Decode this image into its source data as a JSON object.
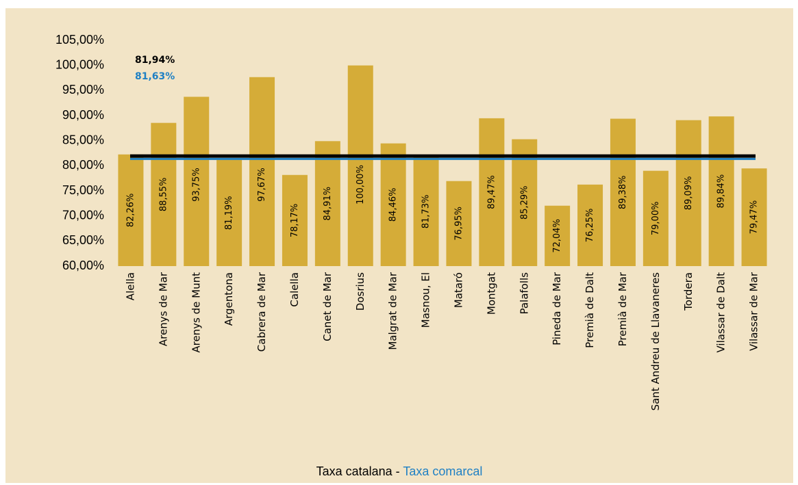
{
  "chart_data": {
    "type": "bar",
    "categories": [
      "Alella",
      "Arenys de Mar",
      "Arenys de Munt",
      "Argentona",
      "Cabrera de Mar",
      "Calella",
      "Canet de Mar",
      "Dosrius",
      "Malgrat de Mar",
      "Masnou, El",
      "Mataró",
      "Montgat",
      "Palafolls",
      "Pineda de Mar",
      "Premià de Dalt",
      "Premià de Mar",
      "Sant Andreu de Llavaneres",
      "Tordera",
      "Vilassar de Dalt",
      "Vilassar de Mar"
    ],
    "values": [
      82.26,
      88.55,
      93.75,
      81.19,
      97.67,
      78.17,
      84.91,
      100.0,
      84.46,
      81.73,
      76.95,
      89.47,
      85.29,
      72.04,
      76.25,
      89.38,
      79.0,
      89.09,
      89.84,
      79.47
    ],
    "value_labels": [
      "82,26%",
      "88,55%",
      "93,75%",
      "81,19%",
      "97,67%",
      "78,17%",
      "84,91%",
      "100,00%",
      "84,46%",
      "81,73%",
      "76,95%",
      "89,47%",
      "85,29%",
      "72,04%",
      "76,25%",
      "89,38%",
      "79,00%",
      "89,09%",
      "89,84%",
      "79,47%"
    ],
    "color": "#d5ac38",
    "ylim": [
      60,
      105
    ],
    "yticks": [
      {
        "value": 60,
        "label": "60,00%"
      },
      {
        "value": 65,
        "label": "65,00%"
      },
      {
        "value": 70,
        "label": "70,00%"
      },
      {
        "value": 75,
        "label": "75,00%"
      },
      {
        "value": 80,
        "label": "80,00%"
      },
      {
        "value": 85,
        "label": "85,00%"
      },
      {
        "value": 90,
        "label": "90,00%"
      },
      {
        "value": 95,
        "label": "95,00%"
      },
      {
        "value": 100,
        "label": "100,00%"
      },
      {
        "value": 105,
        "label": "105,00%"
      }
    ],
    "reference_lines": [
      {
        "name": "Taxa catalana",
        "value": 81.94,
        "label": "81,94%",
        "color": "#000000"
      },
      {
        "name": "Taxa comarcal",
        "value": 81.63,
        "label": "81,63%",
        "color": "#1f80c4"
      }
    ],
    "legend_separator": "-"
  }
}
